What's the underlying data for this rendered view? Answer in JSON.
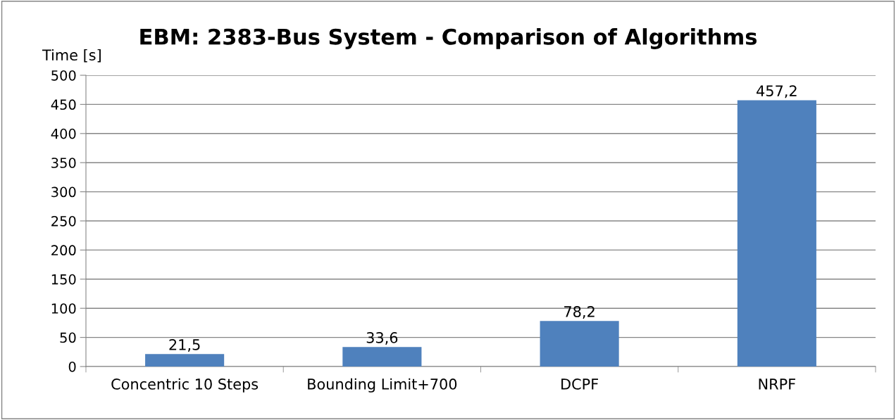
{
  "chart_data": {
    "type": "bar",
    "title": "EBM: 2383-Bus System - Comparison of Algorithms",
    "ylabel": "Time [s]",
    "categories": [
      "Concentric 10 Steps",
      "Bounding Limit+700",
      "DCPF",
      "NRPF"
    ],
    "values": [
      21.5,
      33.6,
      78.2,
      457.2
    ],
    "value_labels": [
      "21,5",
      "33,6",
      "78,2",
      "457,2"
    ],
    "color": "#4f81bd",
    "ylim": [
      0,
      500
    ],
    "yticks": [
      0,
      50,
      100,
      150,
      200,
      250,
      300,
      350,
      400,
      450,
      500
    ],
    "grid": "y",
    "legend": false
  }
}
